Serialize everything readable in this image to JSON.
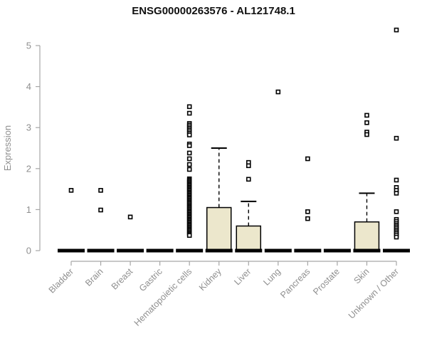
{
  "chart_data": {
    "type": "boxplot",
    "title": "ENSG00000263576 - AL121748.1",
    "ylabel": "Expression",
    "xlabel": "",
    "ylim": [
      0,
      5
    ],
    "yticks": [
      0,
      1,
      2,
      3,
      4,
      5
    ],
    "grid": false,
    "legend": false,
    "categories": [
      "Bladder",
      "Brain",
      "Breast",
      "Gastric",
      "Hematopoietic cells",
      "Kidney",
      "Liver",
      "Lung",
      "Pancreas",
      "Prostate",
      "Skin",
      "Unknown / Other"
    ],
    "series": [
      {
        "category": "Bladder",
        "q1": 0,
        "median": 0,
        "q3": 0,
        "whisker_low": 0,
        "whisker_high": 0,
        "outliers": [
          1.47
        ]
      },
      {
        "category": "Brain",
        "q1": 0,
        "median": 0,
        "q3": 0,
        "whisker_low": 0,
        "whisker_high": 0,
        "outliers": [
          1.47,
          0.99
        ]
      },
      {
        "category": "Breast",
        "q1": 0,
        "median": 0,
        "q3": 0,
        "whisker_low": 0,
        "whisker_high": 0,
        "outliers": [
          0.82
        ]
      },
      {
        "category": "Gastric",
        "q1": 0,
        "median": 0,
        "q3": 0,
        "whisker_low": 0,
        "whisker_high": 0,
        "outliers": []
      },
      {
        "category": "Hematopoietic cells",
        "q1": 0,
        "median": 0,
        "q3": 0,
        "whisker_low": 0,
        "whisker_high": 0,
        "outliers": [
          3.51,
          3.35,
          3.1,
          3.06,
          3.02,
          2.98,
          2.94,
          2.9,
          2.86,
          2.82,
          2.6,
          2.56,
          2.38,
          2.24,
          2.1,
          1.98,
          1.75,
          1.72,
          1.69,
          1.66,
          1.63,
          1.6,
          1.57,
          1.54,
          1.51,
          1.48,
          1.45,
          1.42,
          1.39,
          1.36,
          1.33,
          1.3,
          1.27,
          1.24,
          1.21,
          1.18,
          1.15,
          1.12,
          1.09,
          1.06,
          1.03,
          1.0,
          0.97,
          0.94,
          0.91,
          0.88,
          0.85,
          0.82,
          0.79,
          0.76,
          0.73,
          0.7,
          0.67,
          0.64,
          0.61,
          0.58,
          0.55,
          0.52,
          0.49,
          0.46,
          0.43,
          0.4,
          0.37
        ]
      },
      {
        "category": "Kidney",
        "q1": 0,
        "median": 0,
        "q3": 1.05,
        "whisker_low": 0,
        "whisker_high": 2.5,
        "outliers": []
      },
      {
        "category": "Liver",
        "q1": 0,
        "median": 0,
        "q3": 0.6,
        "whisker_low": 0,
        "whisker_high": 1.2,
        "outliers": [
          2.15,
          2.07,
          1.74
        ]
      },
      {
        "category": "Lung",
        "q1": 0,
        "median": 0,
        "q3": 0,
        "whisker_low": 0,
        "whisker_high": 0,
        "outliers": [
          3.87
        ]
      },
      {
        "category": "Pancreas",
        "q1": 0,
        "median": 0,
        "q3": 0,
        "whisker_low": 0,
        "whisker_high": 0,
        "outliers": [
          2.24,
          0.95,
          0.78
        ]
      },
      {
        "category": "Prostate",
        "q1": 0,
        "median": 0,
        "q3": 0,
        "whisker_low": 0,
        "whisker_high": 0,
        "outliers": []
      },
      {
        "category": "Skin",
        "q1": 0,
        "median": 0,
        "q3": 0.7,
        "whisker_low": 0,
        "whisker_high": 1.4,
        "outliers": [
          3.3,
          3.12,
          2.89,
          2.83
        ]
      },
      {
        "category": "Unknown / Other",
        "q1": 0,
        "median": 0,
        "q3": 0,
        "whisker_low": 0,
        "whisker_high": 0,
        "outliers": [
          5.38,
          2.74,
          1.72,
          1.54,
          1.47,
          1.4,
          0.95,
          0.76,
          0.71,
          0.66,
          0.62,
          0.58,
          0.54,
          0.5,
          0.46,
          0.42,
          0.38,
          0.33
        ]
      }
    ],
    "colors": {
      "box_fill": "#ece7cc",
      "box_stroke": "#000000",
      "median": "#000000",
      "outlier_stroke": "#000000",
      "outlier_fill": "#ffffff",
      "axis": "#a6a6a6",
      "tick_label": "#8f8f8f",
      "title": "#111111"
    },
    "outlier_shape": "open-square",
    "layout": {
      "x_label_rotation": -45,
      "legend_position": "none"
    }
  }
}
